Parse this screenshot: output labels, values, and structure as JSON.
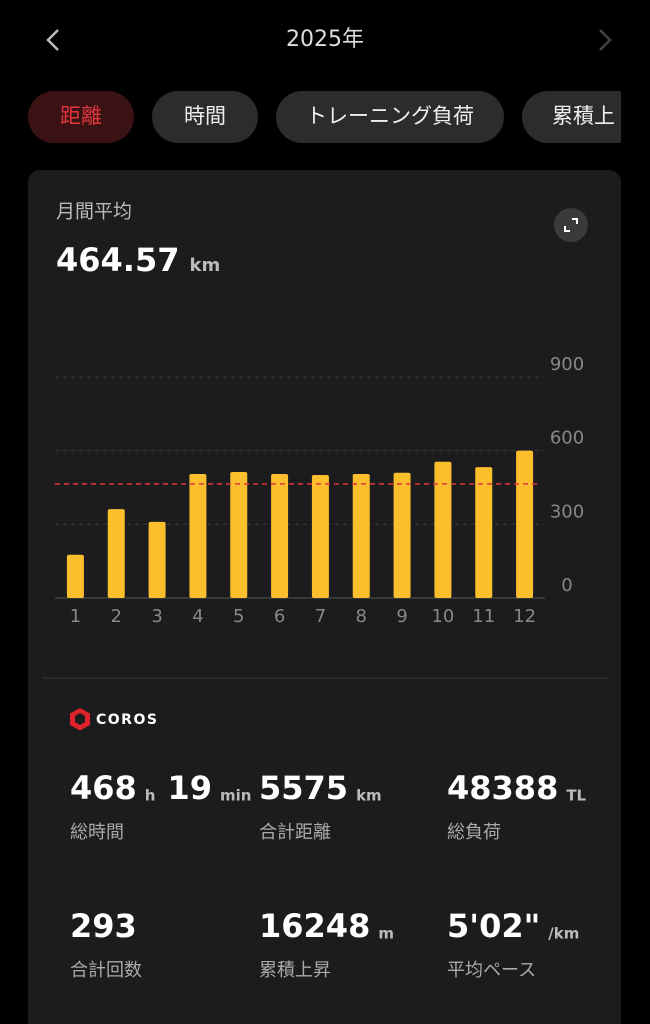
{
  "header": {
    "title": "2025年"
  },
  "tabs": [
    "距離",
    "時間",
    "トレーニング負荷",
    "累積上"
  ],
  "chart_data": {
    "type": "bar",
    "title": "月間平均",
    "average": 464.57,
    "unit": "km",
    "categories": [
      "1",
      "2",
      "3",
      "4",
      "5",
      "6",
      "7",
      "8",
      "9",
      "10",
      "11",
      "12"
    ],
    "values": [
      176,
      362,
      310,
      505,
      513,
      505,
      501,
      505,
      510,
      555,
      533,
      600
    ],
    "color": "#fbbf2e",
    "average_color": "#e0353b",
    "ylim": [
      0,
      900
    ],
    "yticks": [
      0,
      300,
      600,
      900
    ],
    "grid": true
  },
  "brand": "COROS",
  "stats": [
    {
      "value": "468",
      "unit": "h",
      "value2": "19",
      "unit2": "min",
      "label": "総時間"
    },
    {
      "value": "5575",
      "unit": "km",
      "label": "合計距離"
    },
    {
      "value": "48388",
      "unit": "TL",
      "label": "総負荷"
    },
    {
      "value": "293",
      "label": "合計回数"
    },
    {
      "value": "16248",
      "unit": "m",
      "label": "累積上昇"
    },
    {
      "value": "5'02\"",
      "unit": "/km",
      "label": "平均ペース"
    }
  ]
}
